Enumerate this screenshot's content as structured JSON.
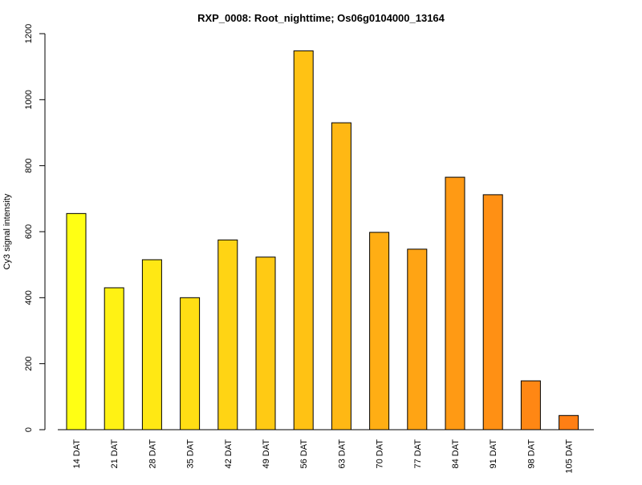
{
  "chart_data": {
    "type": "bar",
    "title": "RXP_0008: Root_nighttime; Os06g0104000_13164",
    "xlabel": "",
    "ylabel": "Cy3 signal intensity",
    "ylim": [
      0,
      1200
    ],
    "yticks": [
      0,
      200,
      400,
      600,
      800,
      1000,
      1200
    ],
    "categories": [
      "14 DAT",
      "21 DAT",
      "28 DAT",
      "35 DAT",
      "42 DAT",
      "49 DAT",
      "56 DAT",
      "63 DAT",
      "70 DAT",
      "77 DAT",
      "84 DAT",
      "91 DAT",
      "98 DAT",
      "105 DAT"
    ],
    "values": [
      655,
      430,
      515,
      400,
      575,
      523,
      1148,
      930,
      598,
      547,
      765,
      712,
      148,
      43
    ],
    "colors": [
      "#ffff14",
      "#fff214",
      "#ffe814",
      "#ffde14",
      "#ffd414",
      "#ffca14",
      "#ffc214",
      "#ffb814",
      "#ffae14",
      "#ffa414",
      "#ff9a14",
      "#ff9014",
      "#ff8714",
      "#ff7f14"
    ],
    "grid": false,
    "legend": "none"
  }
}
